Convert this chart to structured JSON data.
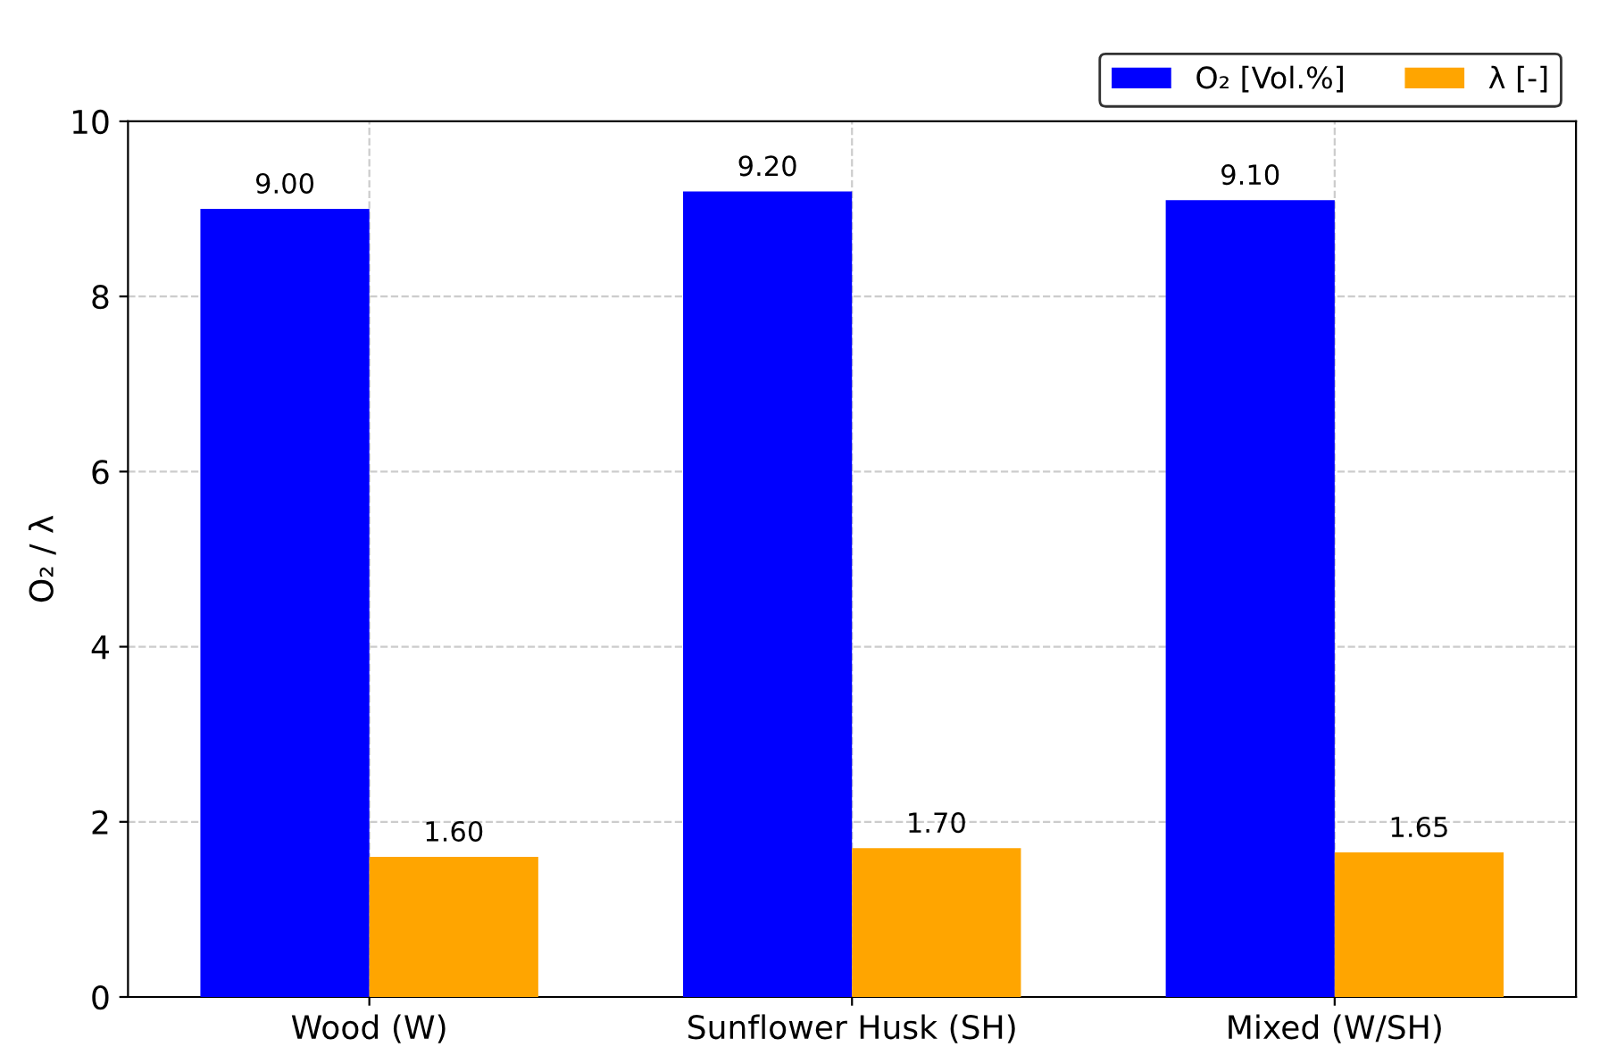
{
  "chart_data": {
    "type": "bar",
    "categories": [
      "Wood (W)",
      "Sunflower Husk (SH)",
      "Mixed (W/SH)"
    ],
    "ylabel": "O₂ / λ",
    "series": [
      {
        "name": "O₂ [Vol.%]",
        "color": "#0000ff",
        "values": [
          9.0,
          9.2,
          9.1
        ],
        "value_labels": [
          "9.00",
          "9.20",
          "9.10"
        ]
      },
      {
        "name": "λ [-]",
        "color": "#ffa500",
        "values": [
          1.6,
          1.7,
          1.65
        ],
        "value_labels": [
          "1.60",
          "1.70",
          "1.65"
        ]
      }
    ],
    "ylim": [
      0,
      10
    ],
    "yticks": [
      0,
      2,
      4,
      6,
      8,
      10
    ],
    "grid": true,
    "legend": "top right"
  }
}
